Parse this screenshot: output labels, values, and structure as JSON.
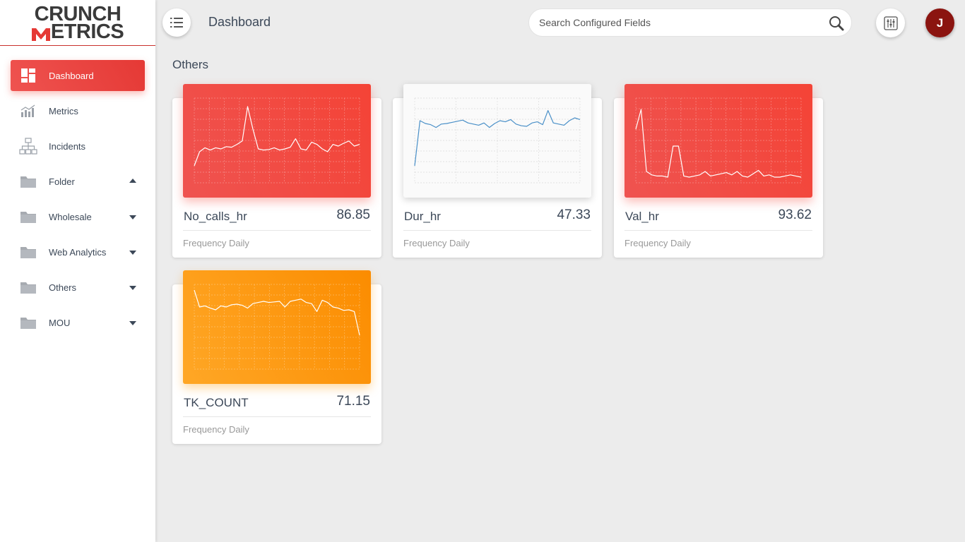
{
  "brand": {
    "line1": "CRUNCH",
    "line2": "ETRICS"
  },
  "sidebar": {
    "items": [
      {
        "label": "Dashboard",
        "icon": "dashboard-icon",
        "active": true,
        "caret": "none"
      },
      {
        "label": "Metrics",
        "icon": "bar-chart-icon",
        "active": false,
        "caret": "none"
      },
      {
        "label": "Incidents",
        "icon": "hierarchy-icon",
        "active": false,
        "caret": "none"
      },
      {
        "label": "Folder",
        "icon": "folder-icon",
        "active": false,
        "caret": "up"
      },
      {
        "label": "Wholesale",
        "icon": "folder-icon",
        "active": false,
        "caret": "down"
      },
      {
        "label": "Web Analytics",
        "icon": "folder-icon",
        "active": false,
        "caret": "down"
      },
      {
        "label": "Others",
        "icon": "folder-icon",
        "active": false,
        "caret": "down"
      },
      {
        "label": "MOU",
        "icon": "folder-icon",
        "active": false,
        "caret": "down"
      }
    ]
  },
  "header": {
    "title": "Dashboard",
    "search_placeholder": "Search Configured Fields",
    "avatar_initial": "J"
  },
  "section": {
    "title": "Others"
  },
  "colors": {
    "accent_red": "#f44336",
    "accent_orange": "#fb8c00",
    "line_blue": "#4a90c8",
    "avatar": "#8b1410"
  },
  "cards": [
    {
      "name": "No_calls_hr",
      "value": "86.85",
      "footer": "Frequency Daily",
      "theme": "red"
    },
    {
      "name": "Dur_hr",
      "value": "47.33",
      "footer": "Frequency Daily",
      "theme": "white"
    },
    {
      "name": "Val_hr",
      "value": "93.62",
      "footer": "Frequency Daily",
      "theme": "red"
    },
    {
      "name": "TK_COUNT",
      "value": "71.15",
      "footer": "Frequency Daily",
      "theme": "orange"
    }
  ],
  "chart_data": [
    {
      "type": "line",
      "series": [
        {
          "values": [
            30,
            55,
            62,
            58,
            62,
            60,
            64,
            63,
            68,
            74,
            135,
            95,
            60,
            58,
            59,
            62,
            58,
            60,
            63,
            78,
            60,
            58,
            72,
            68,
            60,
            55,
            68,
            65,
            70,
            74,
            65,
            68
          ]
        }
      ],
      "ylim": [
        0,
        150
      ]
    },
    {
      "type": "line",
      "series": [
        {
          "values": [
            30,
            110,
            105,
            103,
            98,
            104,
            105,
            107,
            109,
            111,
            106,
            104,
            102,
            106,
            98,
            105,
            110,
            108,
            112,
            104,
            101,
            100,
            106,
            108,
            103,
            128,
            106,
            104,
            102,
            110,
            115,
            112
          ]
        }
      ],
      "ylim": [
        0,
        150
      ]
    },
    {
      "type": "line",
      "series": [
        {
          "values": [
            95,
            130,
            20,
            14,
            12,
            12,
            10,
            65,
            65,
            12,
            10,
            12,
            14,
            20,
            12,
            14,
            16,
            18,
            14,
            20,
            12,
            10,
            16,
            22,
            12,
            14,
            10,
            10,
            12,
            14,
            12,
            10
          ]
        }
      ],
      "ylim": [
        0,
        150
      ]
    },
    {
      "type": "line",
      "series": [
        {
          "values": [
            140,
            110,
            112,
            108,
            105,
            112,
            110,
            114,
            115,
            113,
            108,
            116,
            118,
            120,
            118,
            119,
            120,
            110,
            120,
            122,
            124,
            118,
            116,
            102,
            122,
            118,
            110,
            108,
            104,
            105,
            102,
            60
          ]
        }
      ],
      "ylim": [
        0,
        150
      ]
    }
  ]
}
